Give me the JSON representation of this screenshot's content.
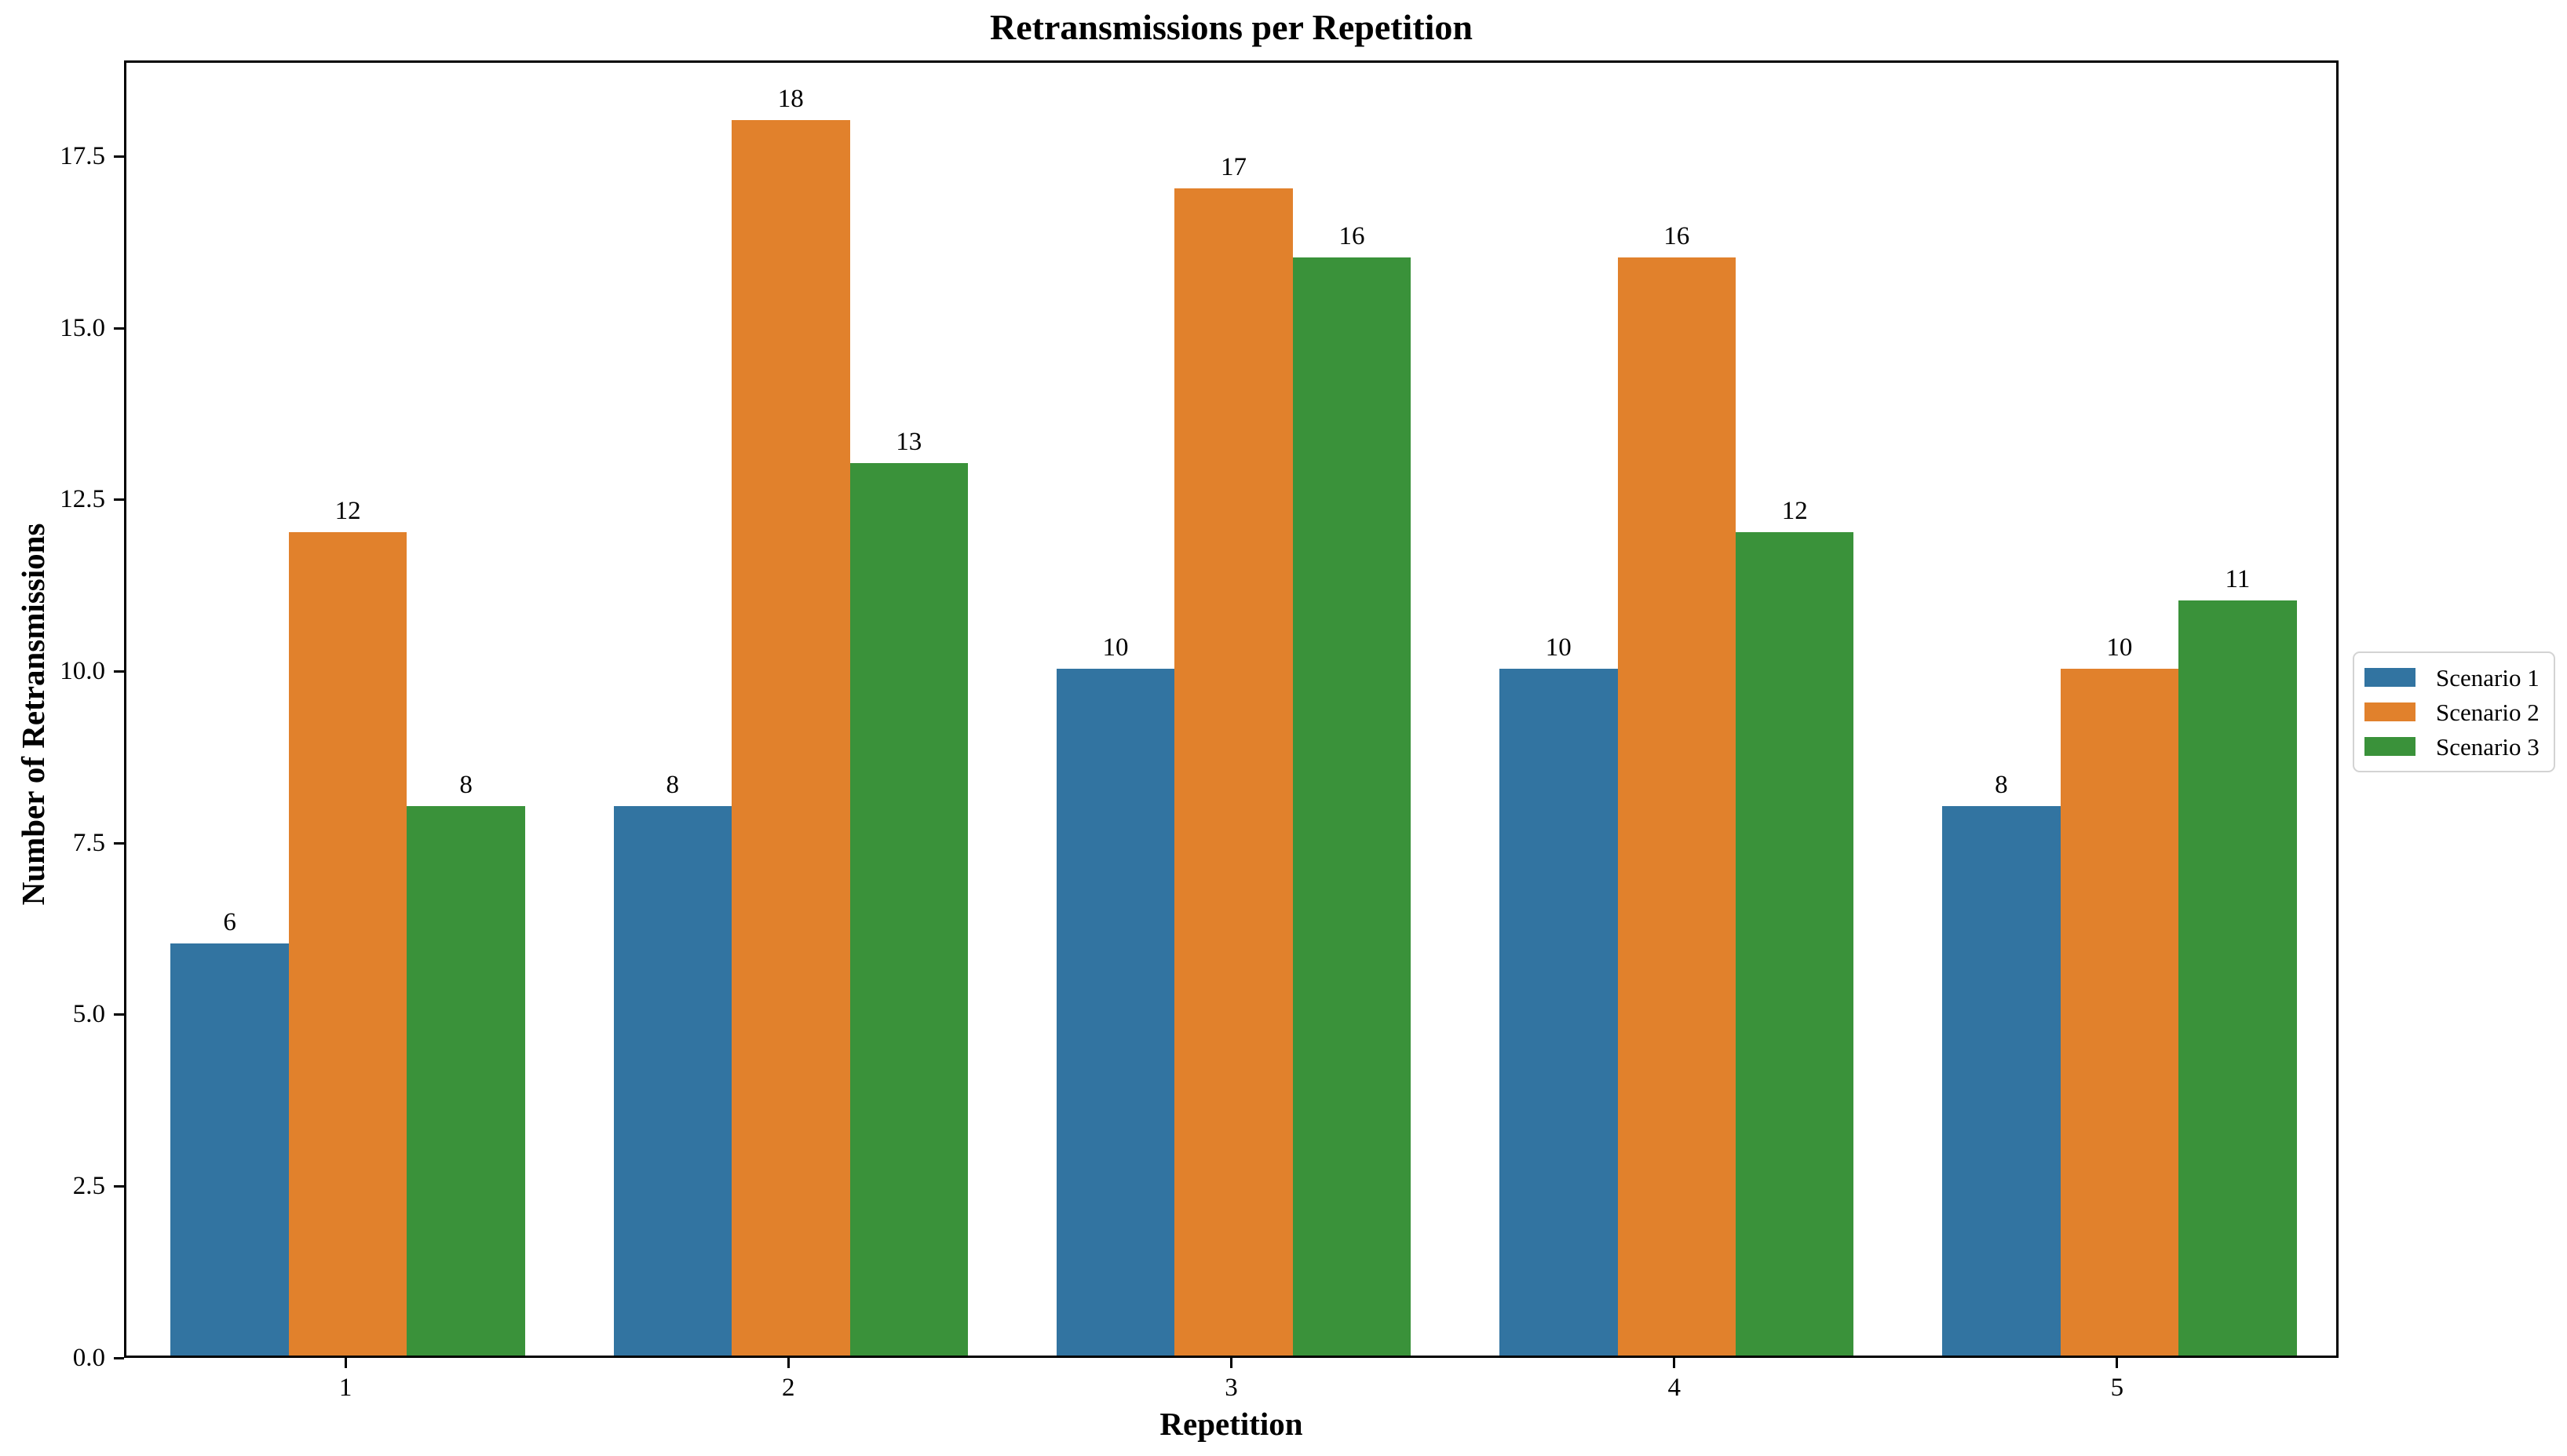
{
  "chart_data": {
    "type": "bar",
    "title": "Retransmissions per Repetition",
    "xlabel": "Repetition",
    "ylabel": "Number of Retransmissions",
    "categories": [
      "1",
      "2",
      "3",
      "4",
      "5"
    ],
    "series": [
      {
        "name": "Scenario 1",
        "color": "#3274a1",
        "values": [
          6,
          8,
          10,
          10,
          8
        ]
      },
      {
        "name": "Scenario 2",
        "color": "#e1812c",
        "values": [
          12,
          18,
          17,
          16,
          10
        ]
      },
      {
        "name": "Scenario 3",
        "color": "#3a923a",
        "values": [
          8,
          13,
          16,
          12,
          11
        ]
      }
    ],
    "ylim": [
      0,
      18.9
    ],
    "yticks": [
      "0.0",
      "2.5",
      "5.0",
      "7.5",
      "10.0",
      "12.5",
      "15.0",
      "17.5"
    ],
    "bar_labels": true,
    "grid": false,
    "group_width_fraction": 0.8,
    "legend_position": "center right outside",
    "background_color": "#ffffff",
    "text_color": "#000000"
  }
}
